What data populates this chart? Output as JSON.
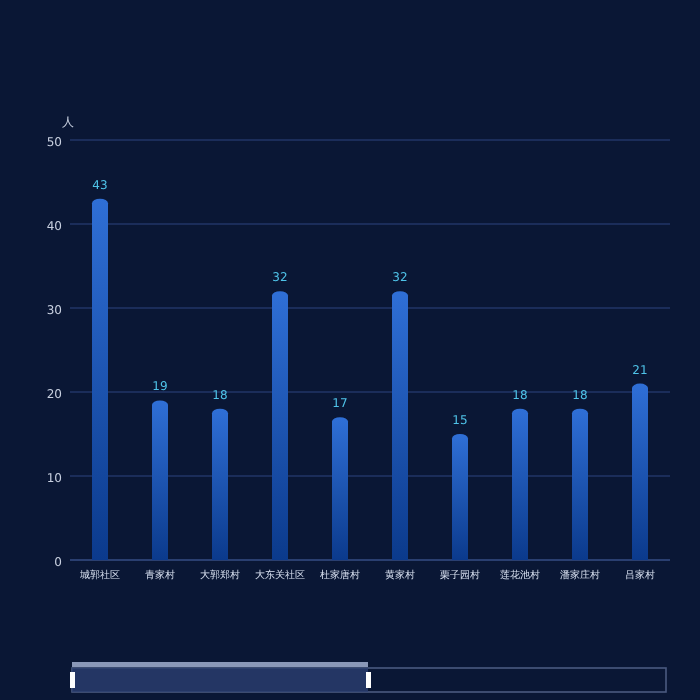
{
  "chart_data": {
    "type": "bar",
    "ylabel": "人",
    "categories": [
      "城郭社区",
      "青家村",
      "大郭郑村",
      "大东关社区",
      "杜家唐村",
      "黄家村",
      "栗子园村",
      "莲花池村",
      "潘家庄村",
      "吕家村"
    ],
    "values": [
      43,
      19,
      18,
      32,
      17,
      32,
      15,
      18,
      18,
      21
    ],
    "color": "#2f6fd6",
    "ylim": [
      0,
      50
    ],
    "yticks": [
      0,
      10,
      20,
      30,
      40,
      50
    ],
    "grid": "y",
    "data_labels": true
  }
}
